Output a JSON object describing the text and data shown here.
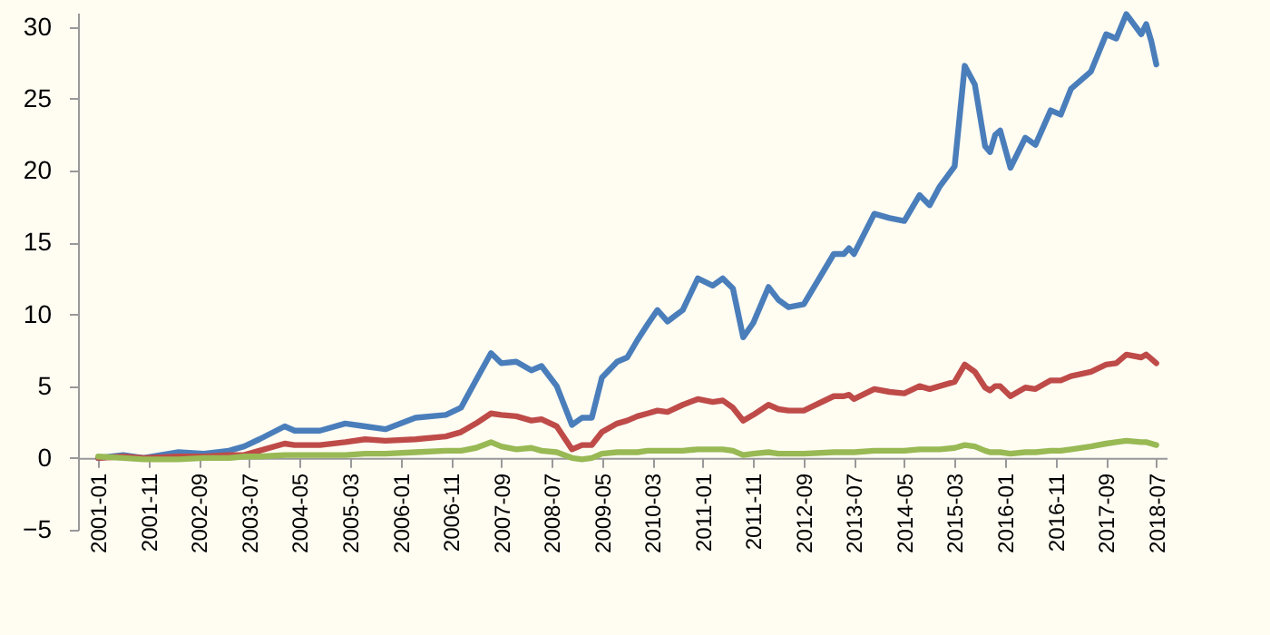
{
  "chart_data": {
    "type": "line",
    "x": [
      "2001-01",
      "2001-06",
      "2001-10",
      "2002-05",
      "2002-10",
      "2003-03",
      "2003-06",
      "2003-09",
      "2004-02",
      "2004-04",
      "2004-09",
      "2005-02",
      "2005-06",
      "2005-10",
      "2006-04",
      "2006-10",
      "2007-01",
      "2007-04",
      "2007-07",
      "2007-09",
      "2007-12",
      "2008-03",
      "2008-05",
      "2008-08",
      "2008-11",
      "2009-01",
      "2009-03",
      "2009-05",
      "2009-08",
      "2009-10",
      "2009-12",
      "2010-02",
      "2010-04",
      "2010-06",
      "2010-09",
      "2010-12",
      "2011-03",
      "2011-05",
      "2011-07",
      "2011-09",
      "2011-11",
      "2012-02",
      "2012-04",
      "2012-06",
      "2012-09",
      "2013-03",
      "2013-05",
      "2013-06",
      "2013-07",
      "2013-11",
      "2014-02",
      "2014-05",
      "2014-08",
      "2014-10",
      "2014-12",
      "2015-03",
      "2015-05",
      "2015-07",
      "2015-09",
      "2015-10",
      "2015-11",
      "2015-12",
      "2016-02",
      "2016-05",
      "2016-07",
      "2016-10",
      "2016-12",
      "2017-02",
      "2017-06",
      "2017-09",
      "2017-11",
      "2018-01",
      "2018-04",
      "2018-05",
      "2018-06",
      "2018-07"
    ],
    "series": [
      {
        "color": "#4a7ebb",
        "values": [
          0,
          0.2,
          0,
          0.4,
          0.3,
          0.5,
          0.8,
          1.3,
          2.2,
          1.9,
          1.9,
          2.4,
          2.2,
          2.0,
          2.8,
          3.0,
          3.5,
          5.4,
          7.3,
          6.6,
          6.7,
          6.1,
          6.4,
          5.0,
          2.3,
          2.8,
          2.8,
          5.6,
          6.7,
          7.0,
          8.2,
          9.3,
          10.3,
          9.5,
          10.3,
          12.5,
          12.0,
          12.5,
          11.8,
          8.4,
          9.4,
          11.9,
          11.0,
          10.5,
          10.7,
          14.2,
          14.2,
          14.6,
          14.2,
          17.0,
          16.7,
          16.5,
          18.3,
          17.6,
          18.9,
          20.3,
          27.3,
          26.0,
          21.7,
          21.3,
          22.5,
          22.8,
          20.2,
          22.3,
          21.8,
          24.2,
          23.9,
          25.7,
          26.9,
          29.5,
          29.2,
          30.9,
          29.5,
          30.2,
          29.0,
          27.4
        ]
      },
      {
        "color": "#be4b48",
        "values": [
          0,
          0.1,
          0,
          0.1,
          0.1,
          0.2,
          0.2,
          0.5,
          1.0,
          0.9,
          0.9,
          1.1,
          1.3,
          1.2,
          1.3,
          1.5,
          1.8,
          2.4,
          3.1,
          3.0,
          2.9,
          2.6,
          2.7,
          2.2,
          0.6,
          0.9,
          0.9,
          1.8,
          2.4,
          2.6,
          2.9,
          3.1,
          3.3,
          3.2,
          3.7,
          4.1,
          3.9,
          4.0,
          3.5,
          2.6,
          3.0,
          3.7,
          3.4,
          3.3,
          3.3,
          4.3,
          4.3,
          4.4,
          4.1,
          4.8,
          4.6,
          4.5,
          5.0,
          4.8,
          5.0,
          5.3,
          6.5,
          6.0,
          4.9,
          4.7,
          5.0,
          5.0,
          4.3,
          4.9,
          4.8,
          5.4,
          5.4,
          5.7,
          6.0,
          6.5,
          6.6,
          7.2,
          7.0,
          7.2,
          6.9,
          6.6
        ]
      },
      {
        "color": "#98b954",
        "values": [
          0.1,
          0,
          -0.1,
          -0.1,
          0,
          0,
          0.1,
          0.1,
          0.2,
          0.2,
          0.2,
          0.2,
          0.3,
          0.3,
          0.4,
          0.5,
          0.5,
          0.7,
          1.1,
          0.8,
          0.6,
          0.7,
          0.5,
          0.4,
          0,
          -0.1,
          0,
          0.3,
          0.4,
          0.4,
          0.4,
          0.5,
          0.5,
          0.5,
          0.5,
          0.6,
          0.6,
          0.6,
          0.5,
          0.2,
          0.3,
          0.4,
          0.3,
          0.3,
          0.3,
          0.4,
          0.4,
          0.4,
          0.4,
          0.5,
          0.5,
          0.5,
          0.6,
          0.6,
          0.6,
          0.7,
          0.9,
          0.8,
          0.5,
          0.4,
          0.4,
          0.4,
          0.3,
          0.4,
          0.4,
          0.5,
          0.5,
          0.6,
          0.8,
          1.0,
          1.1,
          1.2,
          1.1,
          1.1,
          1.0,
          0.9
        ]
      }
    ],
    "xlim": [
      "2000-09",
      "2018-09"
    ],
    "xticks": [
      "2001-01",
      "2001-11",
      "2002-09",
      "2003-07",
      "2004-05",
      "2005-03",
      "2006-01",
      "2006-11",
      "2007-09",
      "2008-07",
      "2009-05",
      "2010-03",
      "2011-01",
      "2011-11",
      "2012-09",
      "2013-07",
      "2014-05",
      "2015-03",
      "2016-01",
      "2016-11",
      "2017-09",
      "2018-07"
    ],
    "ylim": [
      -5,
      31
    ],
    "yticks": [
      -5,
      0,
      5,
      10,
      15,
      20,
      25,
      30
    ]
  }
}
